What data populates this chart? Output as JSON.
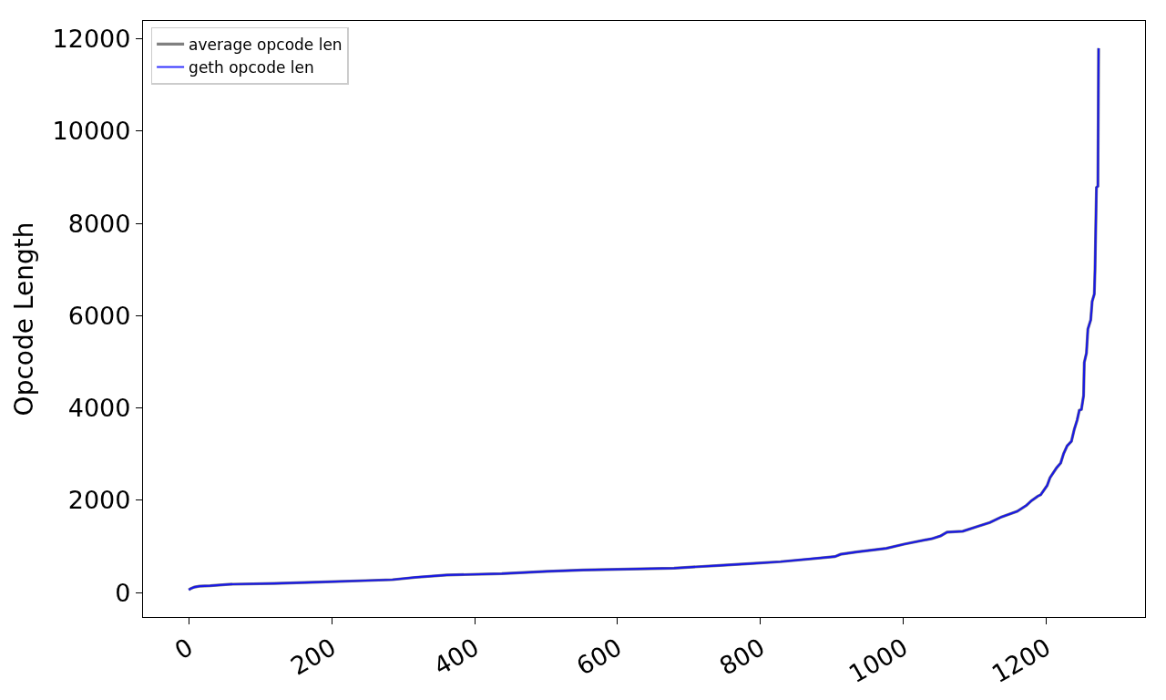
{
  "chart_data": {
    "type": "line",
    "ylabel": "Opcode Length",
    "x": [
      0,
      3,
      8,
      15,
      30,
      56,
      120,
      183,
      247,
      285,
      317,
      361,
      438,
      501,
      552,
      616,
      679,
      743,
      785,
      828,
      870,
      904,
      912,
      934,
      976,
      1001,
      1040,
      1052,
      1061,
      1083,
      1103,
      1121,
      1137,
      1159,
      1172,
      1179,
      1188,
      1192,
      1201,
      1205,
      1214,
      1220,
      1224,
      1229,
      1235,
      1239,
      1243,
      1246,
      1249,
      1252,
      1253,
      1256,
      1258,
      1262,
      1264,
      1267,
      1268,
      1270,
      1272,
      1273
    ],
    "series": [
      {
        "name": "average opcode len",
        "color": "#808080",
        "values": [
          60,
          90,
          120,
          140,
          150,
          180,
          200,
          230,
          260,
          280,
          330,
          380,
          410,
          460,
          490,
          510,
          530,
          590,
          630,
          670,
          730,
          780,
          830,
          880,
          960,
          1050,
          1170,
          1230,
          1310,
          1330,
          1430,
          1520,
          1640,
          1760,
          1890,
          1990,
          2090,
          2120,
          2320,
          2490,
          2700,
          2810,
          3010,
          3180,
          3280,
          3540,
          3740,
          3950,
          3970,
          4270,
          4990,
          5190,
          5710,
          5910,
          6310,
          6470,
          7000,
          8780,
          8810,
          11800
        ]
      },
      {
        "name": "geth opcode len",
        "color": "#0000ff",
        "values": [
          60,
          90,
          120,
          140,
          150,
          180,
          200,
          230,
          260,
          280,
          330,
          380,
          410,
          460,
          490,
          510,
          530,
          590,
          630,
          670,
          730,
          780,
          830,
          880,
          960,
          1050,
          1170,
          1230,
          1310,
          1330,
          1430,
          1520,
          1640,
          1760,
          1890,
          1990,
          2090,
          2120,
          2320,
          2490,
          2700,
          2810,
          3010,
          3180,
          3280,
          3540,
          3740,
          3950,
          3970,
          4270,
          4990,
          5190,
          5710,
          5910,
          6310,
          6470,
          7000,
          8780,
          8810,
          11800
        ]
      }
    ],
    "xlim": [
      -64,
      1338
    ],
    "ylim": [
      -530,
      12390
    ],
    "xticks": [
      0,
      200,
      400,
      600,
      800,
      1000,
      1200
    ],
    "yticks": [
      0,
      2000,
      4000,
      6000,
      8000,
      10000,
      12000
    ],
    "legend": "top left",
    "line_style": "solid"
  }
}
